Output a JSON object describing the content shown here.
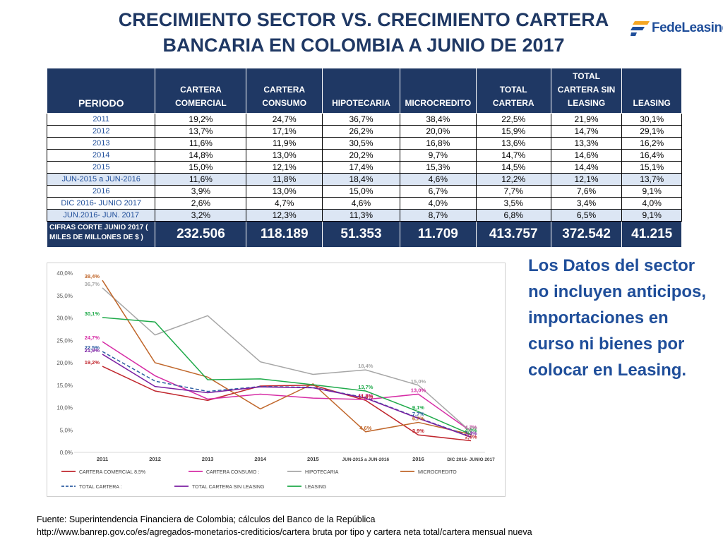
{
  "page": {
    "title": "CRECIMIENTO SECTOR VS. CRECIMIENTO CARTERA BANCARIA EN COLOMBIA A  JUNIO DE 2017",
    "logo_text": "FedeLeasing",
    "note": "Los Datos del sector no incluyen anticipos, importaciones en curso ni bienes por colocar en Leasing.",
    "source_line1": "Fuente: Superintendencia Financiera de Colombia; cálculos del Banco de la República",
    "source_line2": "http://www.banrep.gov.co/es/agregados-monetarios-crediticios/cartera bruta por tipo y cartera neta total/cartera mensual nueva"
  },
  "table": {
    "headers": [
      "PERIODO",
      "CARTERA\nCOMERCIAL",
      "CARTERA\nCONSUMO",
      "HIPOTECARIA",
      "MICROCREDITO",
      "TOTAL\nCARTERA",
      "TOTAL\nCARTERA SIN\nLEASING",
      "LEASING"
    ],
    "rows": [
      {
        "period": "2011",
        "values": [
          "19,2%",
          "24,7%",
          "36,7%",
          "38,4%",
          "22,5%",
          "21,9%",
          "30,1%"
        ]
      },
      {
        "period": "2012",
        "values": [
          "13,7%",
          "17,1%",
          "26,2%",
          "20,0%",
          "15,9%",
          "14,7%",
          "29,1%"
        ]
      },
      {
        "period": "2013",
        "values": [
          "11,6%",
          "11,9%",
          "30,5%",
          "16,8%",
          "13,6%",
          "13,3%",
          "16,2%"
        ]
      },
      {
        "period": "2014",
        "values": [
          "14,8%",
          "13,0%",
          "20,2%",
          "9,7%",
          "14,7%",
          "14,6%",
          "16,4%"
        ]
      },
      {
        "period": "2015",
        "values": [
          "15,0%",
          "12,1%",
          "17,4%",
          "15,3%",
          "14,5%",
          "14,4%",
          "15,1%"
        ]
      },
      {
        "period": "JUN-2015 a JUN-2016",
        "values": [
          "11,6%",
          "11,8%",
          "18,4%",
          "4,6%",
          "12,2%",
          "12,1%",
          "13,7%"
        ]
      },
      {
        "period": "2016",
        "values": [
          "3,9%",
          "13,0%",
          "15,0%",
          "6,7%",
          "7,7%",
          "7,6%",
          "9,1%"
        ]
      },
      {
        "period": "DIC 2016- JUNIO 2017",
        "values": [
          "2,6%",
          "4,7%",
          "4,6%",
          "4,0%",
          "3,5%",
          "3,4%",
          "4,0%"
        ]
      },
      {
        "period": "JUN.2016- JUN. 2017",
        "values": [
          "3,2%",
          "12,3%",
          "11,3%",
          "8,7%",
          "6,8%",
          "6,5%",
          "9,1%"
        ]
      }
    ],
    "totals_label": "CIFRAS CORTE  JUNIO 2017 ( MILES DE MILLONES DE $ )",
    "totals": [
      "232.506",
      "118.189",
      "51.353",
      "11.709",
      "413.757",
      "372.542",
      "41.215"
    ]
  },
  "chart_data": {
    "type": "line",
    "categories": [
      "2011",
      "2012",
      "2013",
      "2014",
      "2015",
      "JUN-2015 a JUN-2016",
      "2016",
      "DIC 2016- JUNIO 2017"
    ],
    "ylim": [
      0,
      40
    ],
    "yticks": [
      "0,0%",
      "5,0%",
      "10,0%",
      "15,0%",
      "20,0%",
      "25,0%",
      "30,0%",
      "35,0%",
      "40,0%"
    ],
    "grid": false,
    "legend_position": "bottom",
    "series": [
      {
        "name": "CARTERA COMERCIAL 8,5%",
        "color": "#c0262d",
        "dash": false,
        "values": [
          19.2,
          13.7,
          11.6,
          14.8,
          15.0,
          11.6,
          3.9,
          2.6
        ]
      },
      {
        "name": "CARTERA CONSUMO :",
        "color": "#d62ca5",
        "dash": false,
        "values": [
          24.7,
          17.1,
          11.9,
          13.0,
          12.1,
          11.8,
          13.0,
          4.7
        ]
      },
      {
        "name": "HIPOTECARIA",
        "color": "#a6a6a6",
        "dash": false,
        "values": [
          36.7,
          26.2,
          30.5,
          20.2,
          17.4,
          18.4,
          15.0,
          4.6
        ]
      },
      {
        "name": "MICROCREDITO",
        "color": "#c0662a",
        "dash": false,
        "values": [
          38.4,
          20.0,
          16.8,
          9.7,
          15.3,
          4.6,
          6.7,
          4.0
        ]
      },
      {
        "name": "TOTAL CARTERA :",
        "color": "#2e5fa3",
        "dash": true,
        "values": [
          22.5,
          15.9,
          13.6,
          14.7,
          14.5,
          12.2,
          7.7,
          3.5
        ]
      },
      {
        "name": "TOTAL CARTERA SIN LEASING",
        "color": "#7b1fa2",
        "dash": false,
        "values": [
          21.9,
          14.7,
          13.3,
          14.6,
          14.4,
          12.1,
          7.6,
          3.4
        ]
      },
      {
        "name": "LEASING",
        "color": "#1faa4a",
        "dash": false,
        "values": [
          30.1,
          29.1,
          16.2,
          16.4,
          15.1,
          13.7,
          9.1,
          4.0
        ]
      }
    ],
    "labels": [
      {
        "series": 3,
        "index": 0,
        "text": "38,4%"
      },
      {
        "series": 2,
        "index": 0,
        "text": "36,7%"
      },
      {
        "series": 6,
        "index": 0,
        "text": "30,1%"
      },
      {
        "series": 1,
        "index": 0,
        "text": "24,7%"
      },
      {
        "series": 4,
        "index": 0,
        "text": "22,5%"
      },
      {
        "series": 5,
        "index": 0,
        "text": "21,9%"
      },
      {
        "series": 0,
        "index": 0,
        "text": "19,2%"
      },
      {
        "series": 2,
        "index": 5,
        "text": "18,4%"
      },
      {
        "series": 6,
        "index": 5,
        "text": "13,7%"
      },
      {
        "series": 1,
        "index": 5,
        "text": "11,8%"
      },
      {
        "series": 0,
        "index": 5,
        "text": "11,6%"
      },
      {
        "series": 3,
        "index": 5,
        "text": "4,6%"
      },
      {
        "series": 2,
        "index": 6,
        "text": "15,0%"
      },
      {
        "series": 1,
        "index": 6,
        "text": "13,0%"
      },
      {
        "series": 6,
        "index": 6,
        "text": "9,1%"
      },
      {
        "series": 4,
        "index": 6,
        "text": "7,7%"
      },
      {
        "series": 3,
        "index": 6,
        "text": "6,7%"
      },
      {
        "series": 0,
        "index": 6,
        "text": "3,9%"
      },
      {
        "series": 1,
        "index": 7,
        "text": "4,7%"
      },
      {
        "series": 2,
        "index": 7,
        "text": "4,6%"
      },
      {
        "series": 6,
        "index": 7,
        "text": "4,0%"
      },
      {
        "series": 5,
        "index": 7,
        "text": "3,4%"
      },
      {
        "series": 0,
        "index": 7,
        "text": "2,6%"
      }
    ]
  }
}
